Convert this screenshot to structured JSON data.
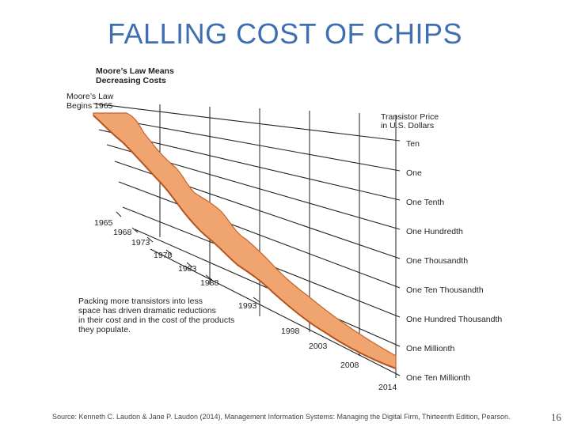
{
  "slide": {
    "title": "FALLING COST OF CHIPS",
    "source": "Source: Kenneth C. Laudon & Jane P. Laudon (2014), Management Information Systems: Managing the Digital Firm, Thirteenth Edition, Pearson.",
    "page_number": "16"
  },
  "figure": {
    "heading_line1": "Moore’s Law Means",
    "heading_line2": "Decreasing Costs",
    "start_label_line1": "Moore’s Law",
    "start_label_line2": "Begins 1965",
    "price_axis_title_line1": "Transistor Price",
    "price_axis_title_line2": "in U.S. Dollars",
    "price_levels": [
      "Ten",
      "One",
      "One Tenth",
      "One Hundredth",
      "One Thousandth",
      "One Ten Thousandth",
      "One Hundred Thousandth",
      "One Millionth",
      "One Ten Millionth"
    ],
    "years": [
      "1965",
      "1968",
      "1973",
      "1978",
      "1983",
      "1988",
      "1993",
      "1998",
      "2003",
      "2008",
      "2014"
    ],
    "caption_lines": [
      "Packing more transistors into less",
      "space has driven dramatic reductions",
      "in their cost and in the cost of the products",
      "they populate."
    ],
    "band_color": "#f0a46f",
    "band_edge_color": "#c8632a"
  }
}
